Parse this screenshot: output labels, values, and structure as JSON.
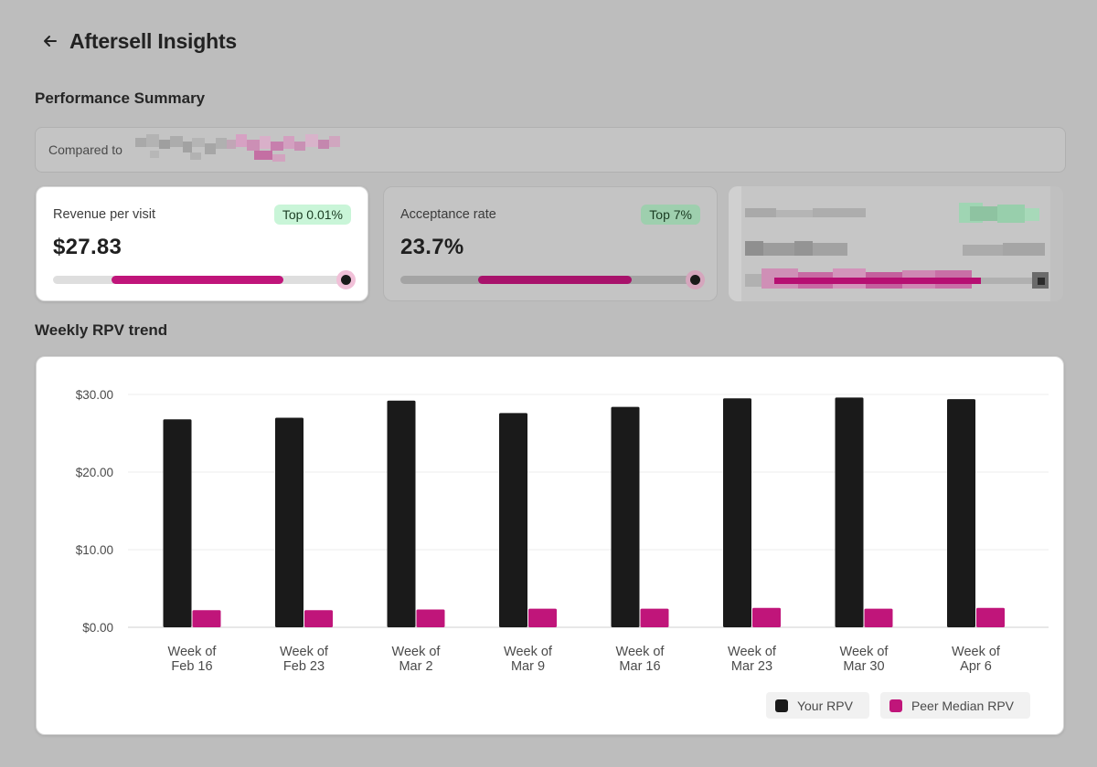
{
  "header": {
    "title": "Aftersell Insights",
    "back_icon": "arrow-left-icon"
  },
  "performance": {
    "title": "Performance Summary",
    "compare": {
      "label": "Compared to"
    },
    "metrics": [
      {
        "label": "Revenue per visit",
        "badge": "Top 0.01%",
        "value": "$27.83"
      },
      {
        "label": "Acceptance rate",
        "badge": "Top 7%",
        "value": "23.7%"
      }
    ]
  },
  "trend": {
    "title": "Weekly RPV trend",
    "legend": [
      {
        "label": "Your RPV",
        "color": "#1a1a1a"
      },
      {
        "label": "Peer Median RPV",
        "color": "#c0157a"
      }
    ]
  },
  "chart_data": {
    "type": "bar",
    "categories": [
      [
        "Week of",
        "Feb 16"
      ],
      [
        "Week of",
        "Feb 23"
      ],
      [
        "Week of",
        "Mar 2"
      ],
      [
        "Week of",
        "Mar 9"
      ],
      [
        "Week of",
        "Mar 16"
      ],
      [
        "Week of",
        "Mar 23"
      ],
      [
        "Week of",
        "Mar 30"
      ],
      [
        "Week of",
        "Apr 6"
      ]
    ],
    "series": [
      {
        "name": "Your RPV",
        "color": "#1a1a1a",
        "values": [
          26.8,
          27.0,
          29.2,
          27.6,
          28.4,
          29.5,
          29.6,
          29.4
        ]
      },
      {
        "name": "Peer Median RPV",
        "color": "#c0157a",
        "values": [
          2.2,
          2.2,
          2.3,
          2.4,
          2.4,
          2.5,
          2.4,
          2.5
        ]
      }
    ],
    "yticks": [
      "$0.00",
      "$10.00",
      "$20.00",
      "$30.00"
    ],
    "ytick_values": [
      0,
      10,
      20,
      30
    ],
    "ylim": [
      0,
      30
    ],
    "grid": true,
    "legend_position": "bottom-right"
  }
}
